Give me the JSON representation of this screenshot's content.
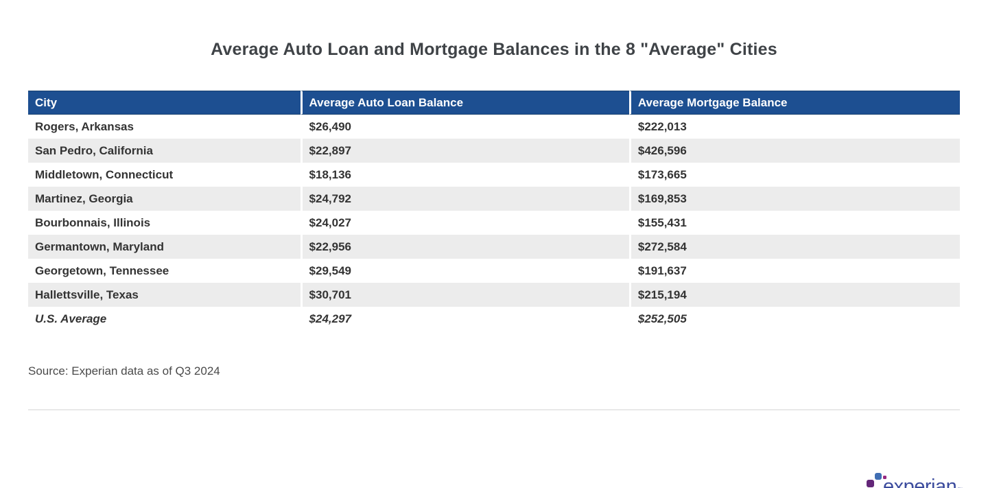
{
  "page_title": "Average Auto Loan and Mortgage Balances in the 8 \"Average\" Cities",
  "table": {
    "columns": [
      "City",
      "Average Auto Loan Balance",
      "Average Mortgage Balance"
    ],
    "rows": [
      {
        "city": "Rogers, Arkansas",
        "auto": "$26,490",
        "mortgage": "$222,013"
      },
      {
        "city": "San Pedro, California",
        "auto": "$22,897",
        "mortgage": "$426,596"
      },
      {
        "city": "Middletown, Connecticut",
        "auto": "$18,136",
        "mortgage": "$173,665"
      },
      {
        "city": "Martinez, Georgia",
        "auto": "$24,792",
        "mortgage": "$169,853"
      },
      {
        "city": "Bourbonnais, Illinois",
        "auto": "$24,027",
        "mortgage": "$155,431"
      },
      {
        "city": "Germantown, Maryland",
        "auto": "$22,956",
        "mortgage": "$272,584"
      },
      {
        "city": "Georgetown, Tennessee",
        "auto": "$29,549",
        "mortgage": "$191,637"
      },
      {
        "city": "Hallettsville, Texas",
        "auto": "$30,701",
        "mortgage": "$215,194"
      },
      {
        "city": "U.S. Average",
        "auto": "$24,297",
        "mortgage": "$252,505"
      }
    ]
  },
  "chart_data": {
    "type": "table",
    "title": "Average Auto Loan and Mortgage Balances in the 8 \"Average\" Cities",
    "columns": [
      "City",
      "Average Auto Loan Balance",
      "Average Mortgage Balance"
    ],
    "rows": [
      [
        "Rogers, Arkansas",
        26490,
        222013
      ],
      [
        "San Pedro, California",
        22897,
        426596
      ],
      [
        "Middletown, Connecticut",
        18136,
        173665
      ],
      [
        "Martinez, Georgia",
        24792,
        169853
      ],
      [
        "Bourbonnais, Illinois",
        24027,
        155431
      ],
      [
        "Germantown, Maryland",
        22956,
        272584
      ],
      [
        "Georgetown, Tennessee",
        29549,
        191637
      ],
      [
        "Hallettsville, Texas",
        30701,
        215194
      ],
      [
        "U.S. Average",
        24297,
        252505
      ]
    ],
    "emphasized_row": "U.S. Average"
  },
  "source_note": "Source: Experian data as of Q3 2024",
  "logo": {
    "text": "experian",
    "trademark": "™"
  },
  "colors": {
    "header_bg": "#1D4F91",
    "row_alt_bg": "#ECECEC",
    "body_text": "#333333",
    "title_text": "#3F4347",
    "divider": "#E8E8E8",
    "wordmark_blue": "#3B4B9D",
    "dot_light_blue": "#406EB3",
    "dot_purple": "#632678",
    "dot_magenta": "#982881",
    "dot_pink": "#BA2F7D"
  }
}
